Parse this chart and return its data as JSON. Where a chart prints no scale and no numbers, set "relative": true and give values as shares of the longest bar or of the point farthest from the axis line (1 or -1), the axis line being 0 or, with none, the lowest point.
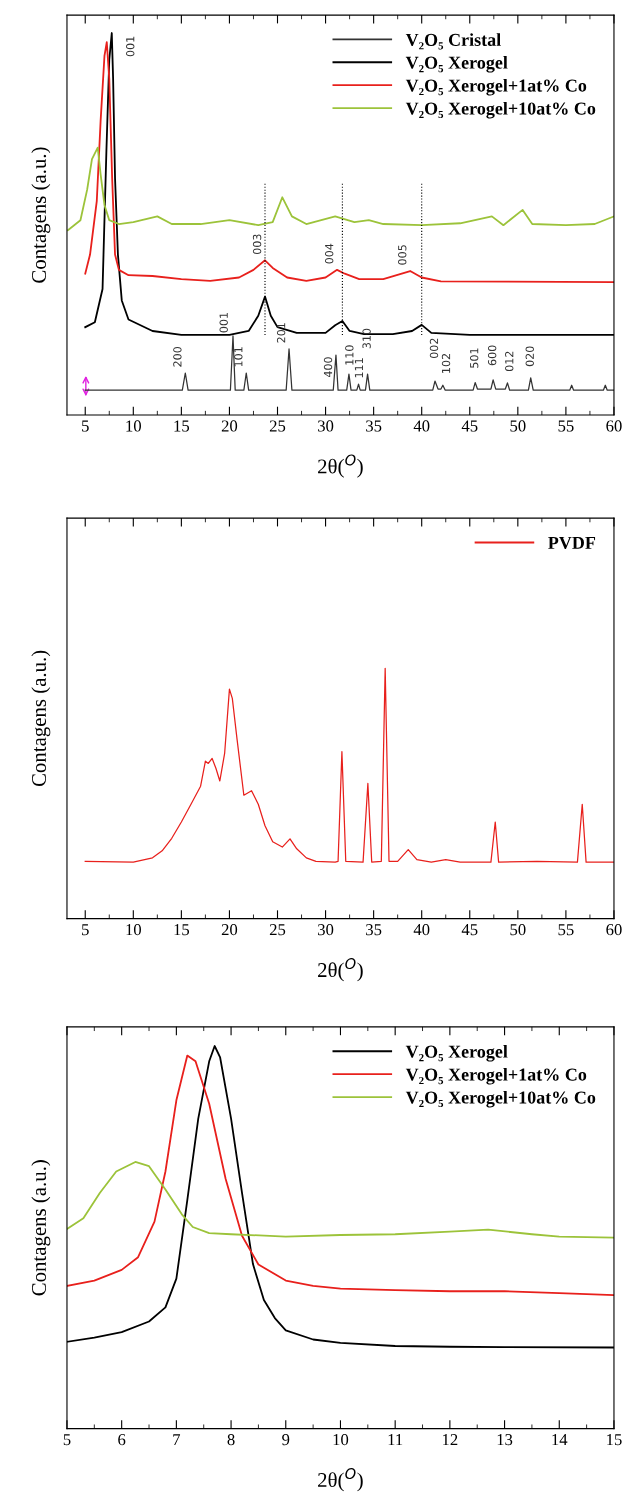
{
  "chart_data": [
    {
      "type": "line",
      "relative": true,
      "xlabel": "2θ($^{O}$)",
      "ylabel": "Contagens (a.u.)",
      "xlim": [
        3.1,
        60
      ],
      "xticks": [
        5,
        10,
        15,
        20,
        25,
        30,
        35,
        40,
        45,
        50,
        55,
        60
      ],
      "tick_labels": "x",
      "legend": "top right",
      "grid": false,
      "series": [
        {
          "name": "V₂O₅ Cristal",
          "color": "#333333",
          "x": [
            5,
            15.1,
            15.41,
            15.7,
            20.1,
            20.37,
            20.6,
            21.5,
            21.75,
            22.0,
            25.9,
            26.2,
            26.5,
            30.8,
            31.08,
            31.3,
            32.2,
            32.43,
            32.65,
            33.25,
            33.43,
            33.6,
            34.15,
            34.37,
            34.6,
            41.15,
            41.38,
            41.7,
            42.0,
            42.2,
            42.45,
            45.35,
            45.56,
            45.8,
            47.2,
            47.43,
            47.7,
            48.7,
            48.92,
            49.15,
            51.1,
            51.34,
            51.6,
            55.4,
            55.6,
            55.8,
            58.9,
            59.1,
            59.3,
            60
          ],
          "values": [
            0.065,
            0.065,
            0.11,
            0.065,
            0.065,
            0.207,
            0.065,
            0.065,
            0.11,
            0.065,
            0.065,
            0.173,
            0.065,
            0.065,
            0.157,
            0.065,
            0.065,
            0.107,
            0.065,
            0.065,
            0.081,
            0.065,
            0.065,
            0.107,
            0.065,
            0.065,
            0.089,
            0.068,
            0.068,
            0.078,
            0.065,
            0.065,
            0.085,
            0.068,
            0.068,
            0.092,
            0.068,
            0.068,
            0.084,
            0.065,
            0.065,
            0.097,
            0.065,
            0.065,
            0.078,
            0.065,
            0.065,
            0.078,
            0.065,
            0.065
          ]
        },
        {
          "name": "V₂O₅ Xerogel",
          "color": "#000000",
          "x": [
            5,
            6,
            6.8,
            7.2,
            7.5,
            7.76,
            7.9,
            8.1,
            8.4,
            8.8,
            9.5,
            12,
            15,
            20,
            22,
            23,
            23.7,
            24.3,
            25,
            27,
            30,
            31,
            31.75,
            32.5,
            34,
            37,
            39,
            40.0,
            41,
            45,
            60
          ],
          "values": [
            0.23,
            0.243,
            0.33,
            0.69,
            0.93,
            1.0,
            0.88,
            0.62,
            0.42,
            0.3,
            0.25,
            0.22,
            0.21,
            0.21,
            0.22,
            0.26,
            0.31,
            0.26,
            0.23,
            0.215,
            0.215,
            0.235,
            0.246,
            0.22,
            0.212,
            0.212,
            0.22,
            0.236,
            0.215,
            0.21,
            0.21
          ]
        },
        {
          "name": "V₂O₅ Xerogel+1at% Co",
          "color": "#e8201c",
          "x": [
            5,
            5.5,
            6.2,
            6.6,
            7.0,
            7.24,
            7.5,
            7.8,
            8.1,
            8.5,
            9.5,
            12,
            15,
            18,
            21,
            22.5,
            23.7,
            24.5,
            26,
            28,
            30,
            31.2,
            32,
            33.5,
            36,
            38.8,
            40,
            42,
            60
          ],
          "values": [
            0.37,
            0.42,
            0.56,
            0.77,
            0.94,
            0.976,
            0.88,
            0.62,
            0.42,
            0.38,
            0.366,
            0.364,
            0.356,
            0.351,
            0.36,
            0.38,
            0.405,
            0.385,
            0.36,
            0.351,
            0.36,
            0.38,
            0.37,
            0.356,
            0.356,
            0.377,
            0.36,
            0.35,
            0.348
          ]
        },
        {
          "name": "V₂O₅ Xerogel+10at% Co",
          "color": "#9cc33a",
          "x": [
            3.2,
            4.5,
            5.2,
            5.7,
            6.3,
            6.6,
            7,
            7.5,
            8.5,
            10,
            12.5,
            14,
            17,
            20,
            23,
            24.5,
            25.5,
            26.5,
            28,
            31,
            33,
            34.5,
            36,
            40,
            44,
            47.3,
            48.5,
            50.5,
            51.5,
            55,
            58,
            60
          ],
          "values": [
            0.484,
            0.51,
            0.59,
            0.67,
            0.7,
            0.63,
            0.55,
            0.51,
            0.5,
            0.505,
            0.52,
            0.5,
            0.5,
            0.51,
            0.497,
            0.505,
            0.57,
            0.52,
            0.5,
            0.52,
            0.505,
            0.51,
            0.5,
            0.497,
            0.502,
            0.52,
            0.497,
            0.537,
            0.5,
            0.497,
            0.5,
            0.52
          ]
        }
      ],
      "ref_lines": [
        {
          "axis": "x",
          "value": 23.7,
          "color": "#000000",
          "line_style": "dotted"
        },
        {
          "axis": "x",
          "value": 31.75,
          "color": "#000000",
          "line_style": "dotted"
        },
        {
          "axis": "x",
          "value": 40.0,
          "color": "#000000",
          "line_style": "dotted"
        }
      ],
      "annotations": [
        {
          "text": "001",
          "x": 7.76,
          "y": 1.0
        },
        {
          "text": "003",
          "x": 23.7,
          "y": 0.405
        },
        {
          "text": "004",
          "x": 31.2,
          "y": 0.38
        },
        {
          "text": "005",
          "x": 38.8,
          "y": 0.377
        },
        {
          "text": "200",
          "x": 15.41,
          "y": 0.11
        },
        {
          "text": "001",
          "x": 20.37,
          "y": 0.207
        },
        {
          "text": "101",
          "x": 21.75,
          "y": 0.11
        },
        {
          "text": "201",
          "x": 26.2,
          "y": 0.173
        },
        {
          "text": "400",
          "x": 31.08,
          "y": 0.157
        },
        {
          "text": "110",
          "x": 32.43,
          "y": 0.107
        },
        {
          "text": "111",
          "x": 33.43,
          "y": 0.081
        },
        {
          "text": "310",
          "x": 34.37,
          "y": 0.107
        },
        {
          "text": "002",
          "x": 41.38,
          "y": 0.089
        },
        {
          "text": "102",
          "x": 42.2,
          "y": 0.078
        },
        {
          "text": "501",
          "x": 45.56,
          "y": 0.085
        },
        {
          "text": "600",
          "x": 47.43,
          "y": 0.092
        },
        {
          "text": "012",
          "x": 48.92,
          "y": 0.084
        },
        {
          "text": "020",
          "x": 51.34,
          "y": 0.097
        }
      ]
    },
    {
      "type": "line",
      "relative": true,
      "xlabel": "2θ($^{O}$)",
      "ylabel": "Contagens (a.u.)",
      "xlim": [
        3.1,
        60
      ],
      "xticks": [
        5,
        10,
        15,
        20,
        25,
        30,
        35,
        40,
        45,
        50,
        55,
        60
      ],
      "tick_labels": "x",
      "legend": "top right",
      "grid": false,
      "series": [
        {
          "name": "PVDF",
          "color": "#e8201c",
          "x": [
            5,
            10,
            12,
            13,
            14,
            15,
            16,
            17,
            17.5,
            17.8,
            18.2,
            18.6,
            19.0,
            19.5,
            20.0,
            20.3,
            20.8,
            21.5,
            22.3,
            23,
            23.7,
            24.5,
            25.5,
            26.3,
            27,
            28,
            29,
            31,
            31.3,
            31.7,
            32.1,
            33.9,
            34.4,
            34.8,
            35.8,
            36.2,
            36.6,
            37.5,
            38.6,
            39.5,
            41,
            42.5,
            44,
            47.2,
            47.65,
            48.0,
            52,
            56.2,
            56.7,
            57.1,
            60
          ],
          "values": [
            0.229,
            0.226,
            0.243,
            0.271,
            0.321,
            0.386,
            0.457,
            0.529,
            0.629,
            0.62,
            0.64,
            0.6,
            0.55,
            0.66,
            0.917,
            0.88,
            0.714,
            0.493,
            0.511,
            0.457,
            0.371,
            0.307,
            0.286,
            0.319,
            0.279,
            0.243,
            0.229,
            0.226,
            0.229,
            0.667,
            0.229,
            0.226,
            0.54,
            0.226,
            0.229,
            1.0,
            0.229,
            0.229,
            0.276,
            0.236,
            0.226,
            0.236,
            0.226,
            0.226,
            0.386,
            0.226,
            0.229,
            0.226,
            0.457,
            0.226,
            0.226
          ]
        }
      ]
    },
    {
      "type": "line",
      "relative": true,
      "xlabel": "2θ($^{O}$)",
      "ylabel": "Contagens (a.u.)",
      "xlim": [
        5,
        15
      ],
      "xticks": [
        5,
        6,
        7,
        8,
        9,
        10,
        11,
        12,
        13,
        14,
        15
      ],
      "tick_labels": "x",
      "legend": "top right",
      "grid": false,
      "series": [
        {
          "name": "V₂O₅ Xerogel",
          "color": "#000000",
          "x": [
            5,
            5.5,
            6,
            6.5,
            6.8,
            7.0,
            7.2,
            7.4,
            7.6,
            7.7,
            7.8,
            8.0,
            8.2,
            8.4,
            8.6,
            8.8,
            9,
            9.5,
            10,
            11,
            12,
            13,
            15
          ],
          "values": [
            0.227,
            0.238,
            0.252,
            0.28,
            0.317,
            0.392,
            0.597,
            0.81,
            0.96,
            1.0,
            0.97,
            0.81,
            0.616,
            0.43,
            0.336,
            0.289,
            0.257,
            0.233,
            0.224,
            0.216,
            0.214,
            0.213,
            0.212
          ]
        },
        {
          "name": "V₂O₅ Xerogel+1at% Co",
          "color": "#e8201c",
          "x": [
            5,
            5.5,
            6,
            6.3,
            6.6,
            6.8,
            7.0,
            7.2,
            7.35,
            7.6,
            7.9,
            8.2,
            8.5,
            9,
            9.5,
            10,
            11,
            12,
            13,
            14,
            15
          ],
          "values": [
            0.373,
            0.387,
            0.415,
            0.448,
            0.541,
            0.672,
            0.858,
            0.975,
            0.96,
            0.849,
            0.653,
            0.504,
            0.429,
            0.387,
            0.373,
            0.366,
            0.362,
            0.359,
            0.359,
            0.354,
            0.349
          ]
        },
        {
          "name": "V₂O₅ Xerogel+10at% Co",
          "color": "#9cc33a",
          "x": [
            5,
            5.3,
            5.6,
            5.9,
            6.25,
            6.5,
            6.8,
            7.1,
            7.3,
            7.6,
            8,
            9,
            10,
            11,
            12,
            12.7,
            13.5,
            14,
            15
          ],
          "values": [
            0.522,
            0.55,
            0.616,
            0.672,
            0.697,
            0.686,
            0.625,
            0.56,
            0.527,
            0.511,
            0.508,
            0.502,
            0.506,
            0.508,
            0.515,
            0.52,
            0.508,
            0.502,
            0.499
          ]
        }
      ]
    }
  ]
}
